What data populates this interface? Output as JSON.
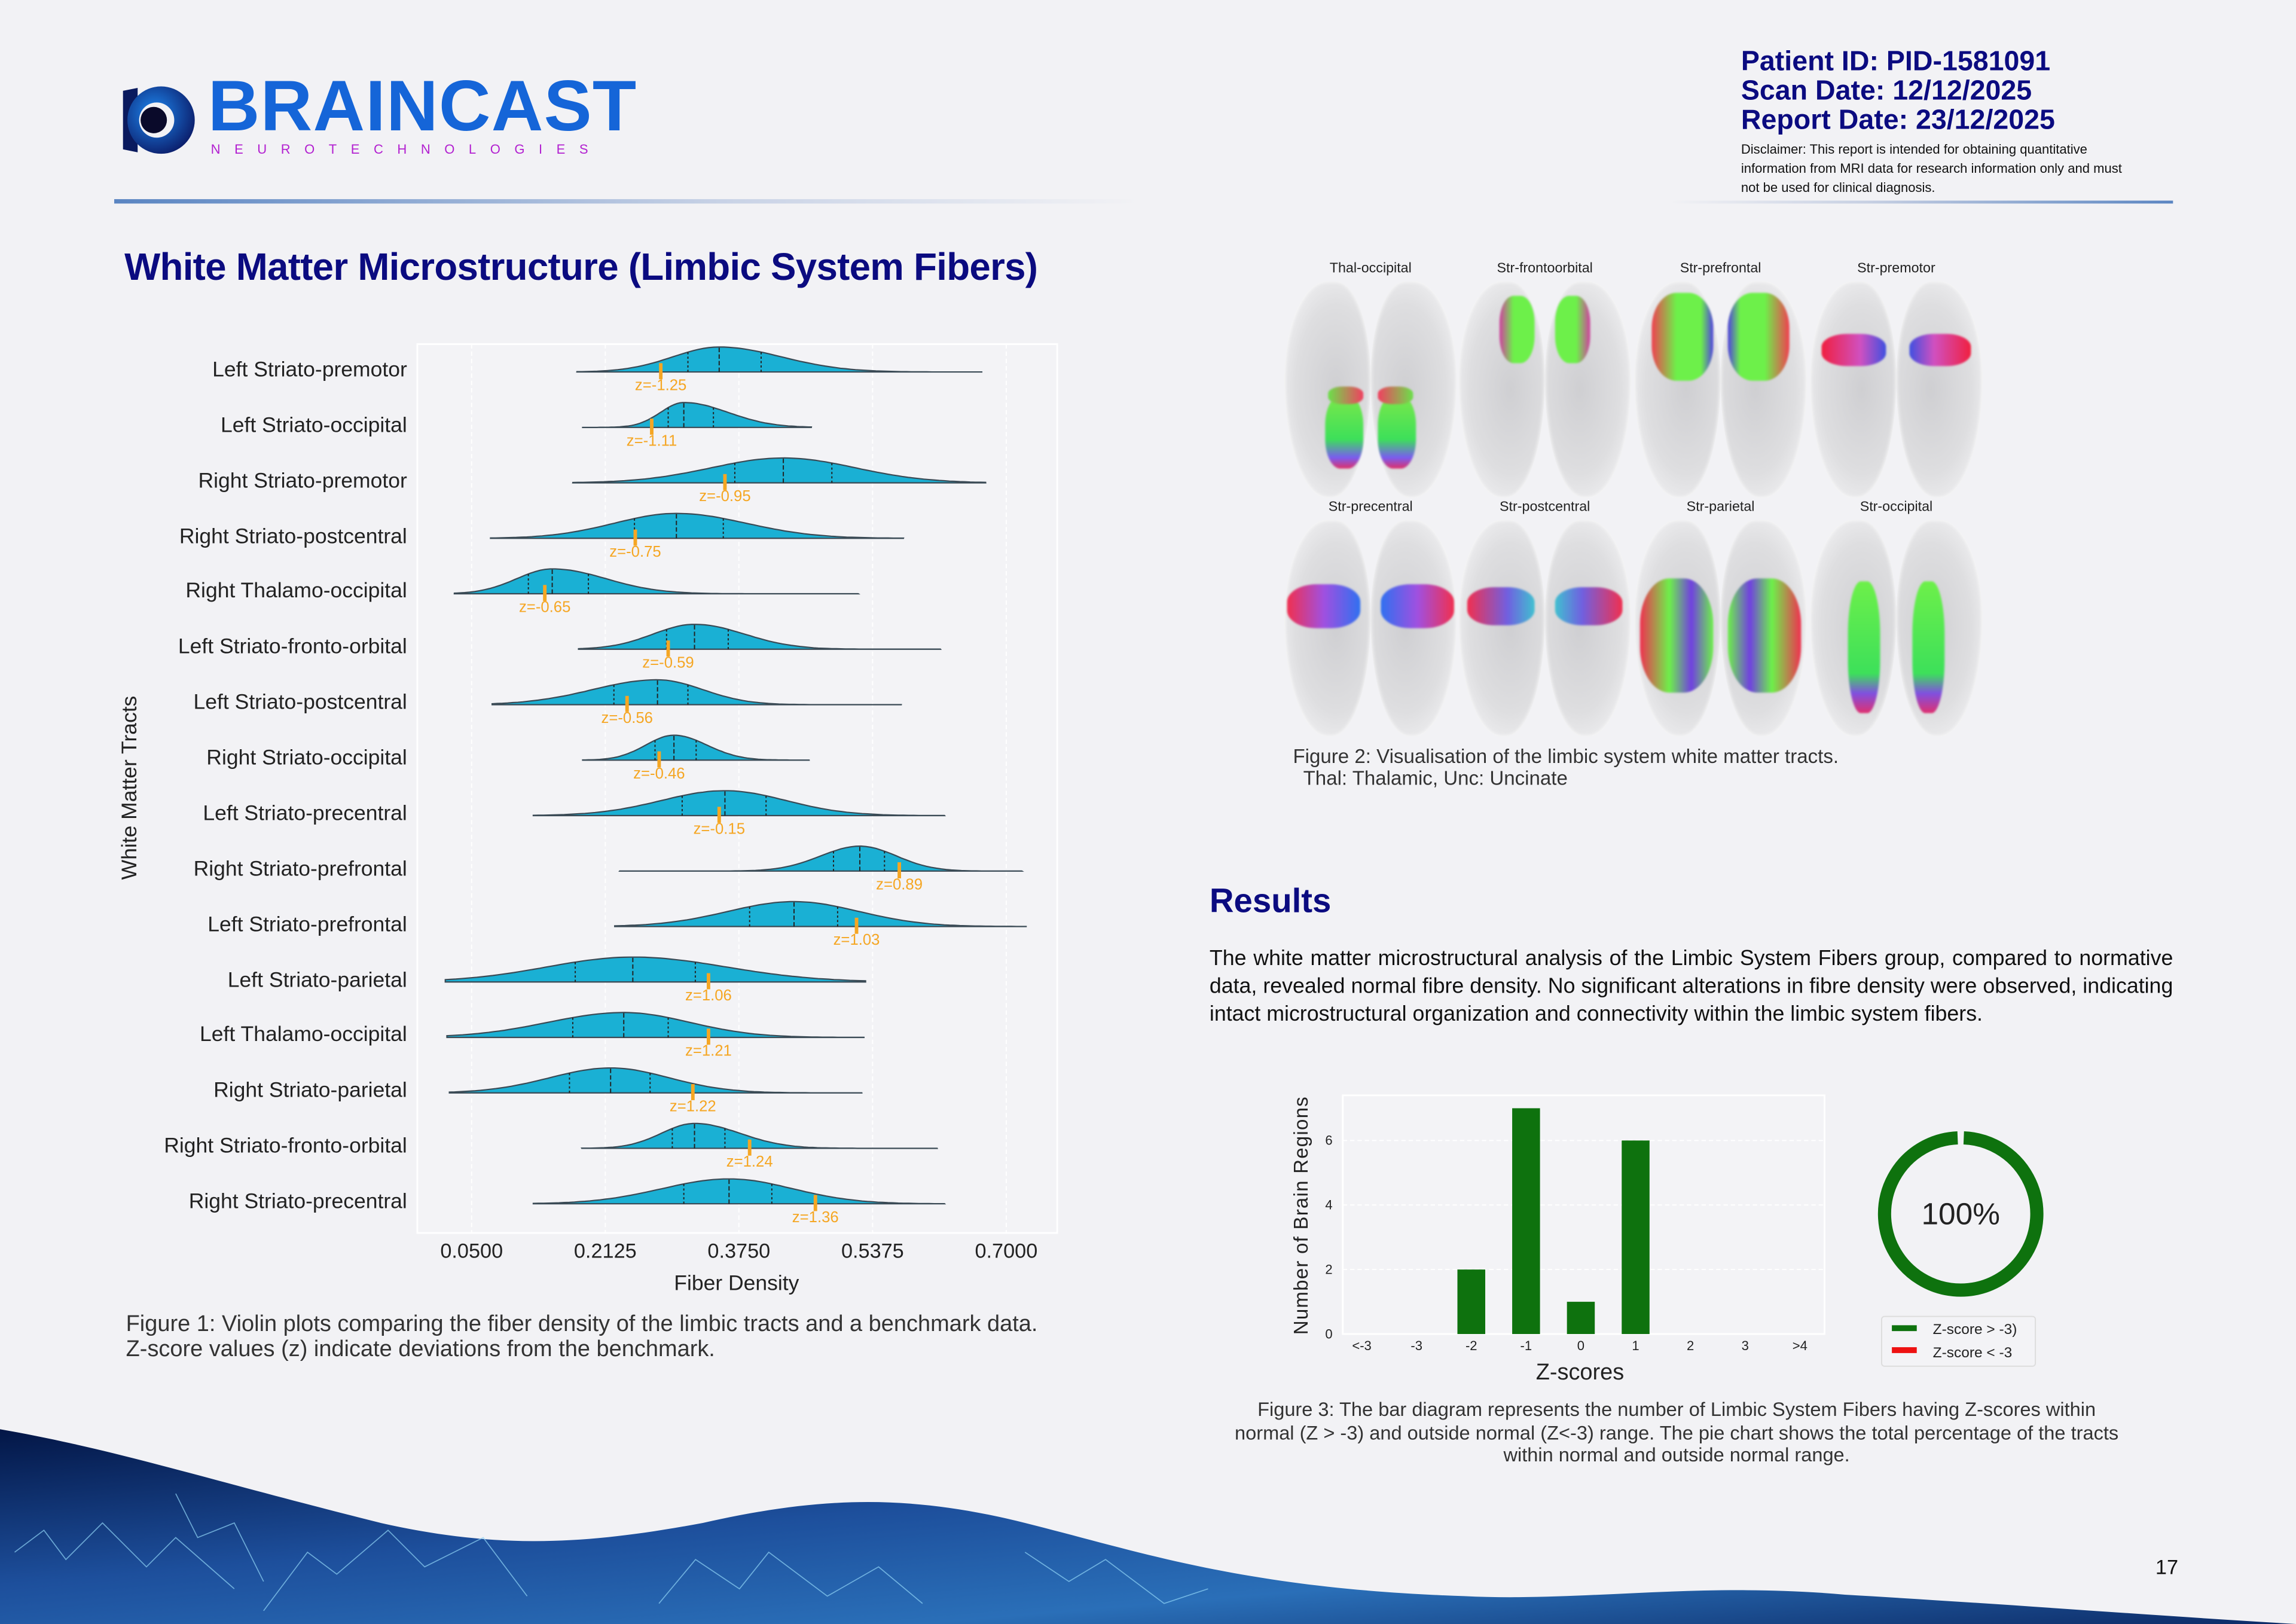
{
  "header": {
    "brand": "BRAINCAST",
    "brand_sub": "NEUROTECHNOLOGIES",
    "patient_id": "Patient ID: PID-1581091",
    "scan_date": "Scan Date: 12/12/2025",
    "report_date": "Report Date: 23/12/2025",
    "disclaimer": "Disclaimer: This report is intended for obtaining quantitative information from MRI data for research information only and must not be used for clinical diagnosis."
  },
  "section_title": "White Matter Microstructure (Limbic System Fibers)",
  "figure1_caption": "Figure 1: Violin plots comparing the fiber density of the limbic tracts and a benchmark data. Z-score values (z) indicate deviations from the benchmark.",
  "figure2": {
    "labels": [
      "Thal-occipital",
      "Str-frontoorbital",
      "Str-prefrontal",
      "Str-premotor",
      "Str-precentral",
      "Str-postcentral",
      "Str-parietal",
      "Str-occipital"
    ],
    "caption_line1": "Figure 2: Visualisation of the limbic system white matter tracts.",
    "caption_line2": "Thal: Thalamic, Unc: Uncinate"
  },
  "results": {
    "title": "Results",
    "text": "The white matter microstructural analysis of the Limbic System Fibers group, compared to normative data, revealed normal fibre density. No significant alterations in fibre density were observed, indicating intact microstructural organization and connectivity within the limbic system fibers."
  },
  "figure3_caption": "Figure 3: The bar diagram represents the number of Limbic System Fibers having Z-scores within normal (Z > -3) and outside normal (Z<-3) range.  The pie chart shows the total percentage of the tracts within normal and outside normal range.",
  "page_number": "17",
  "colors": {
    "violin": "#1ab0d4",
    "marker": "#f5a623",
    "bar": "#0e720e",
    "abnormal": "#ee1111",
    "navy": "#0b0b80"
  },
  "chart_data": [
    {
      "type": "violin",
      "title": "",
      "xlabel": "Fiber Density",
      "ylabel": "White Matter Tracts",
      "xlim": [
        -0.016,
        0.762
      ],
      "xticks": [
        "0.0500",
        "0.2125",
        "0.3750",
        "0.5375",
        "0.7000"
      ],
      "xtick_values": [
        0.05,
        0.2125,
        0.375,
        0.5375,
        0.7
      ],
      "grid": true,
      "series": [
        {
          "name": "Left Striato-premotor",
          "min": 0.178,
          "max": 0.671,
          "q1": 0.313,
          "median": 0.351,
          "q3": 0.402,
          "patient": 0.28,
          "z_label": "z=-1.25"
        },
        {
          "name": "Left Striato-occipital",
          "min": 0.185,
          "max": 0.463,
          "q1": 0.289,
          "median": 0.308,
          "q3": 0.344,
          "patient": 0.269,
          "z_label": "z=-1.11"
        },
        {
          "name": "Right Striato-premotor",
          "min": 0.173,
          "max": 0.675,
          "q1": 0.37,
          "median": 0.429,
          "q3": 0.488,
          "patient": 0.358,
          "z_label": "z=-0.95"
        },
        {
          "name": "Right Striato-postcentral",
          "min": 0.073,
          "max": 0.575,
          "q1": 0.248,
          "median": 0.299,
          "q3": 0.356,
          "patient": 0.249,
          "z_label": "z=-0.75"
        },
        {
          "name": "Right Thalamo-occipital",
          "min": 0.029,
          "max": 0.52,
          "q1": 0.119,
          "median": 0.148,
          "q3": 0.192,
          "patient": 0.139,
          "z_label": "z=-0.65"
        },
        {
          "name": "Left Striato-fronto-orbital",
          "min": 0.18,
          "max": 0.62,
          "q1": 0.287,
          "median": 0.321,
          "q3": 0.362,
          "patient": 0.289,
          "z_label": "z=-0.59"
        },
        {
          "name": "Left Striato-postcentral",
          "min": 0.075,
          "max": 0.573,
          "q1": 0.223,
          "median": 0.276,
          "q3": 0.313,
          "patient": 0.239,
          "z_label": "z=-0.56"
        },
        {
          "name": "Right Striato-occipital",
          "min": 0.185,
          "max": 0.461,
          "q1": 0.273,
          "median": 0.296,
          "q3": 0.323,
          "patient": 0.278,
          "z_label": "z=-0.46"
        },
        {
          "name": "Left Striato-precentral",
          "min": 0.125,
          "max": 0.625,
          "q1": 0.306,
          "median": 0.358,
          "q3": 0.408,
          "patient": 0.351,
          "z_label": "z=-0.15"
        },
        {
          "name": "Right Striato-prefrontal",
          "min": 0.23,
          "max": 0.719,
          "q1": 0.49,
          "median": 0.522,
          "q3": 0.552,
          "patient": 0.57,
          "z_label": "z=0.89"
        },
        {
          "name": "Left Striato-prefrontal",
          "min": 0.224,
          "max": 0.725,
          "q1": 0.388,
          "median": 0.442,
          "q3": 0.495,
          "patient": 0.518,
          "z_label": "z=1.03"
        },
        {
          "name": "Left Striato-parietal",
          "min": 0.018,
          "max": 0.529,
          "q1": 0.176,
          "median": 0.246,
          "q3": 0.322,
          "patient": 0.338,
          "z_label": "z=1.06"
        },
        {
          "name": "Left Thalamo-occipital",
          "min": 0.02,
          "max": 0.527,
          "q1": 0.173,
          "median": 0.235,
          "q3": 0.289,
          "patient": 0.338,
          "z_label": "z=1.21"
        },
        {
          "name": "Right Striato-parietal",
          "min": 0.023,
          "max": 0.525,
          "q1": 0.169,
          "median": 0.219,
          "q3": 0.267,
          "patient": 0.319,
          "z_label": "z=1.22"
        },
        {
          "name": "Right Striato-fronto-orbital",
          "min": 0.184,
          "max": 0.616,
          "q1": 0.294,
          "median": 0.321,
          "q3": 0.358,
          "patient": 0.388,
          "z_label": "z=1.24"
        },
        {
          "name": "Right Striato-precentral",
          "min": 0.125,
          "max": 0.625,
          "q1": 0.308,
          "median": 0.363,
          "q3": 0.415,
          "patient": 0.468,
          "z_label": "z=1.36"
        }
      ]
    },
    {
      "type": "bar",
      "title": "",
      "xlabel": "Z-scores",
      "ylabel": "Number of Brain Regions",
      "categories": [
        "<-3",
        "-3",
        "-2",
        "-1",
        "0",
        "1",
        "2",
        "3",
        ">4"
      ],
      "values": [
        0,
        0,
        2,
        7,
        1,
        6,
        0,
        0,
        0
      ],
      "ylim": [
        0,
        7.4
      ],
      "yticks": [
        "0",
        "2",
        "4",
        "6"
      ],
      "grid": true
    },
    {
      "type": "pie",
      "center_label": "100%",
      "slices": [
        {
          "label": "Z-score > -3)",
          "value": 100
        },
        {
          "label": "Z-score < -3",
          "value": 0
        }
      ],
      "legend_placement": "bottom"
    }
  ]
}
